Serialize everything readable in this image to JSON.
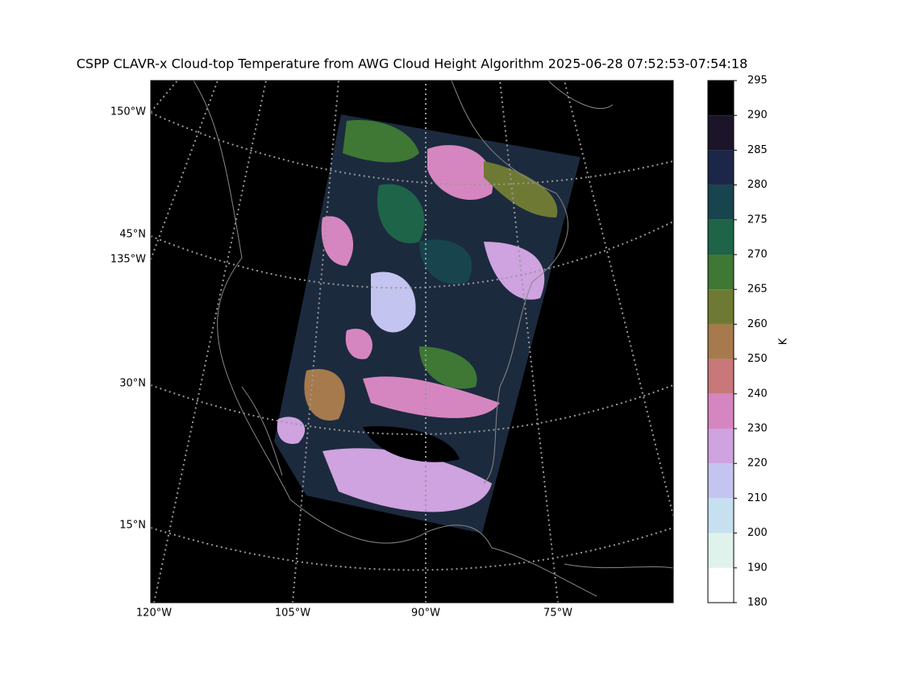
{
  "title": "CSPP CLAVR-x Cloud-top Temperature from AWG Cloud Height Algorithm 2025-06-28 07:52:53-07:54:18",
  "map": {
    "left_labels": [
      "150°W",
      "45°N",
      "135°W",
      "30°N",
      "15°N"
    ],
    "bottom_labels": [
      "120°W",
      "105°W",
      "90°W",
      "75°W"
    ]
  },
  "colorbar": {
    "label": "K",
    "boundaries": [
      180,
      190,
      200,
      210,
      220,
      230,
      240,
      250,
      260,
      265,
      270,
      275,
      280,
      285,
      290,
      295
    ],
    "colors": [
      "#ffffff",
      "#dff3ec",
      "#c6e0f0",
      "#c4c4f0",
      "#cfa2e0",
      "#d586c0",
      "#c87878",
      "#a67a4c",
      "#6e7a34",
      "#3e7834",
      "#1e6448",
      "#18444e",
      "#1c2648",
      "#1c1428",
      "#000000"
    ]
  }
}
